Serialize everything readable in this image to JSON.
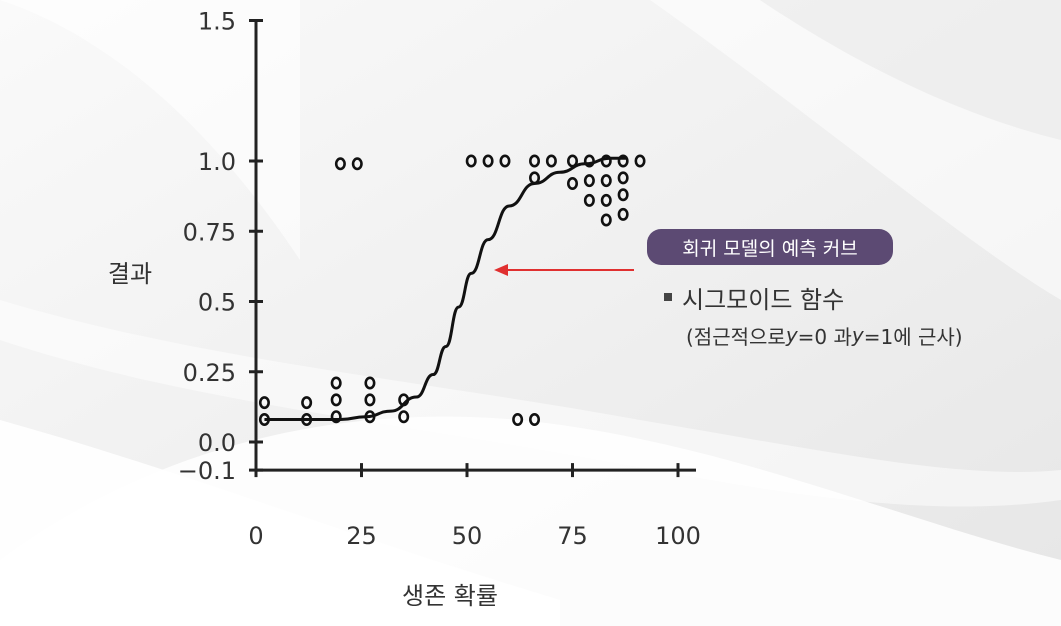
{
  "chart_data": {
    "type": "scatter",
    "xlabel": "생존 확률",
    "ylabel": "결과",
    "x_ticks": [
      "0",
      "25",
      "50",
      "75",
      "100"
    ],
    "y_ticks": [
      "1.5",
      "1.0",
      "0.75",
      "0.5",
      "0.25",
      "0.0",
      "−0.1"
    ],
    "xlim": [
      0,
      100
    ],
    "ylim": [
      -0.1,
      1.5
    ],
    "grid": false,
    "series": [
      {
        "type": "scatter",
        "marker": "open-circle",
        "points": [
          [
            2,
            0.14
          ],
          [
            2,
            0.08
          ],
          [
            12,
            0.14
          ],
          [
            12,
            0.08
          ],
          [
            19,
            0.21
          ],
          [
            19,
            0.15
          ],
          [
            19,
            0.09
          ],
          [
            27,
            0.21
          ],
          [
            27,
            0.15
          ],
          [
            27,
            0.09
          ],
          [
            35,
            0.15
          ],
          [
            35,
            0.09
          ],
          [
            20,
            0.99
          ],
          [
            24,
            0.99
          ],
          [
            51,
            1.0
          ],
          [
            55,
            1.0
          ],
          [
            59,
            1.0
          ],
          [
            62,
            0.08
          ],
          [
            66,
            0.08
          ],
          [
            66,
            1.0
          ],
          [
            66,
            0.94
          ],
          [
            70,
            1.0
          ],
          [
            75,
            1.0
          ],
          [
            75,
            0.92
          ],
          [
            79,
            1.0
          ],
          [
            79,
            0.93
          ],
          [
            79,
            0.86
          ],
          [
            83,
            1.0
          ],
          [
            83,
            0.93
          ],
          [
            83,
            0.86
          ],
          [
            83,
            0.79
          ],
          [
            87,
            1.0
          ],
          [
            87,
            0.94
          ],
          [
            87,
            0.88
          ],
          [
            87,
            0.81
          ],
          [
            91,
            1.0
          ]
        ]
      },
      {
        "type": "line",
        "points": [
          [
            2,
            0.08
          ],
          [
            10,
            0.08
          ],
          [
            20,
            0.08
          ],
          [
            26,
            0.09
          ],
          [
            32,
            0.11
          ],
          [
            38,
            0.16
          ],
          [
            42,
            0.24
          ],
          [
            45,
            0.34
          ],
          [
            48,
            0.48
          ],
          [
            51,
            0.6
          ],
          [
            55,
            0.72
          ],
          [
            60,
            0.84
          ],
          [
            66,
            0.92
          ],
          [
            72,
            0.96
          ],
          [
            78,
            0.99
          ],
          [
            84,
            1.01
          ],
          [
            88,
            1.01
          ]
        ]
      }
    ],
    "annotations": {
      "callout": "회귀 모델의 예측 커브",
      "bullet": "시그모이드 함수",
      "note_prefix": "(점근적으로 ",
      "note_y1": "y",
      "note_mid": "=0 과 ",
      "note_y2": "y",
      "note_suffix": "=1에 근사)"
    },
    "colors": {
      "axis": "#222222",
      "curve": "#111111",
      "points": "#111111",
      "arrow": "#e03030",
      "callout_bg": "#5c4a73"
    }
  }
}
